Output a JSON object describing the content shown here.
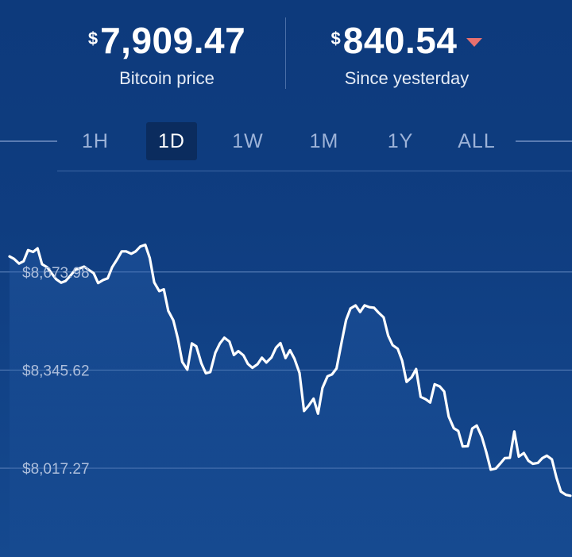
{
  "header": {
    "price": {
      "currency": "$",
      "value": "7,909.47",
      "label": "Bitcoin price"
    },
    "change": {
      "currency": "$",
      "value": "840.54",
      "label": "Since yesterday",
      "direction": "down",
      "arrow_color": "#e8706e"
    }
  },
  "ranges": [
    {
      "label": "1H",
      "active": false
    },
    {
      "label": "1D",
      "active": true
    },
    {
      "label": "1W",
      "active": false
    },
    {
      "label": "1M",
      "active": false
    },
    {
      "label": "1Y",
      "active": false
    },
    {
      "label": "ALL",
      "active": false
    }
  ],
  "colors": {
    "background": "#0f3b7a",
    "line": "#ffffff",
    "grid": "#5f84bd",
    "tick": "#aebfdc"
  },
  "chart_data": {
    "type": "line",
    "title": "",
    "xlabel": "",
    "ylabel": "",
    "grid": true,
    "yticks": [
      "$8,673.98",
      "$8,345.62",
      "$8,017.27"
    ],
    "ytick_values": [
      8673.98,
      8345.62,
      8017.27
    ],
    "ylim": [
      7720,
      9000
    ],
    "xlim": [
      0,
      100
    ],
    "series": [
      {
        "values": [
          [
            0.0,
            8726
          ],
          [
            0.8,
            8718
          ],
          [
            1.7,
            8702
          ],
          [
            2.5,
            8710
          ],
          [
            3.3,
            8747
          ],
          [
            4.2,
            8741
          ],
          [
            5.0,
            8753
          ],
          [
            5.8,
            8700
          ],
          [
            6.7,
            8690
          ],
          [
            7.5,
            8670
          ],
          [
            8.3,
            8650
          ],
          [
            9.2,
            8638
          ],
          [
            10.0,
            8644
          ],
          [
            10.8,
            8660
          ],
          [
            11.7,
            8681
          ],
          [
            12.5,
            8686
          ],
          [
            13.3,
            8692
          ],
          [
            14.2,
            8680
          ],
          [
            15.0,
            8670
          ],
          [
            15.8,
            8637
          ],
          [
            16.7,
            8647
          ],
          [
            17.5,
            8653
          ],
          [
            18.3,
            8690
          ],
          [
            19.2,
            8717
          ],
          [
            20.0,
            8743
          ],
          [
            20.8,
            8743
          ],
          [
            21.7,
            8735
          ],
          [
            22.5,
            8743
          ],
          [
            23.3,
            8759
          ],
          [
            24.2,
            8765
          ],
          [
            25.0,
            8721
          ],
          [
            25.8,
            8639
          ],
          [
            26.7,
            8610
          ],
          [
            27.5,
            8616
          ],
          [
            28.3,
            8544
          ],
          [
            29.2,
            8512
          ],
          [
            30.0,
            8452
          ],
          [
            30.8,
            8373
          ],
          [
            31.7,
            8347
          ],
          [
            32.5,
            8435
          ],
          [
            33.3,
            8425
          ],
          [
            34.2,
            8368
          ],
          [
            35.0,
            8335
          ],
          [
            35.8,
            8339
          ],
          [
            36.7,
            8404
          ],
          [
            37.5,
            8435
          ],
          [
            38.3,
            8454
          ],
          [
            39.2,
            8441
          ],
          [
            40.0,
            8396
          ],
          [
            40.8,
            8409
          ],
          [
            41.7,
            8395
          ],
          [
            42.5,
            8366
          ],
          [
            43.3,
            8353
          ],
          [
            44.2,
            8365
          ],
          [
            45.0,
            8387
          ],
          [
            45.8,
            8371
          ],
          [
            46.7,
            8388
          ],
          [
            47.5,
            8420
          ],
          [
            48.3,
            8436
          ],
          [
            49.2,
            8386
          ],
          [
            50.0,
            8412
          ],
          [
            50.8,
            8384
          ],
          [
            51.7,
            8336
          ],
          [
            52.5,
            8209
          ],
          [
            53.3,
            8226
          ],
          [
            54.2,
            8250
          ],
          [
            55.0,
            8200
          ],
          [
            55.8,
            8286
          ],
          [
            56.7,
            8325
          ],
          [
            57.5,
            8331
          ],
          [
            58.3,
            8351
          ],
          [
            59.2,
            8439
          ],
          [
            60.0,
            8513
          ],
          [
            60.8,
            8552
          ],
          [
            61.7,
            8562
          ],
          [
            62.5,
            8540
          ],
          [
            63.3,
            8562
          ],
          [
            64.2,
            8556
          ],
          [
            65.0,
            8554
          ],
          [
            65.8,
            8538
          ],
          [
            66.7,
            8522
          ],
          [
            67.5,
            8461
          ],
          [
            68.3,
            8429
          ],
          [
            69.2,
            8417
          ],
          [
            70.0,
            8377
          ],
          [
            70.8,
            8306
          ],
          [
            71.7,
            8322
          ],
          [
            72.5,
            8349
          ],
          [
            73.3,
            8256
          ],
          [
            74.2,
            8248
          ],
          [
            75.0,
            8237
          ],
          [
            75.8,
            8298
          ],
          [
            76.7,
            8291
          ],
          [
            77.5,
            8274
          ],
          [
            78.3,
            8190
          ],
          [
            79.2,
            8151
          ],
          [
            80.0,
            8142
          ],
          [
            80.8,
            8090
          ],
          [
            81.7,
            8091
          ],
          [
            82.5,
            8150
          ],
          [
            83.3,
            8160
          ],
          [
            84.2,
            8122
          ],
          [
            85.0,
            8071
          ],
          [
            85.8,
            8012
          ],
          [
            86.7,
            8016
          ],
          [
            87.5,
            8033
          ],
          [
            88.3,
            8051
          ],
          [
            89.2,
            8052
          ],
          [
            90.0,
            8140
          ],
          [
            90.8,
            8056
          ],
          [
            91.7,
            8068
          ],
          [
            92.5,
            8042
          ],
          [
            93.3,
            8032
          ],
          [
            94.2,
            8035
          ],
          [
            95.0,
            8051
          ],
          [
            95.8,
            8059
          ],
          [
            96.7,
            8047
          ],
          [
            97.5,
            7986
          ],
          [
            98.3,
            7939
          ],
          [
            99.2,
            7928
          ],
          [
            100.0,
            7925
          ]
        ]
      }
    ]
  }
}
